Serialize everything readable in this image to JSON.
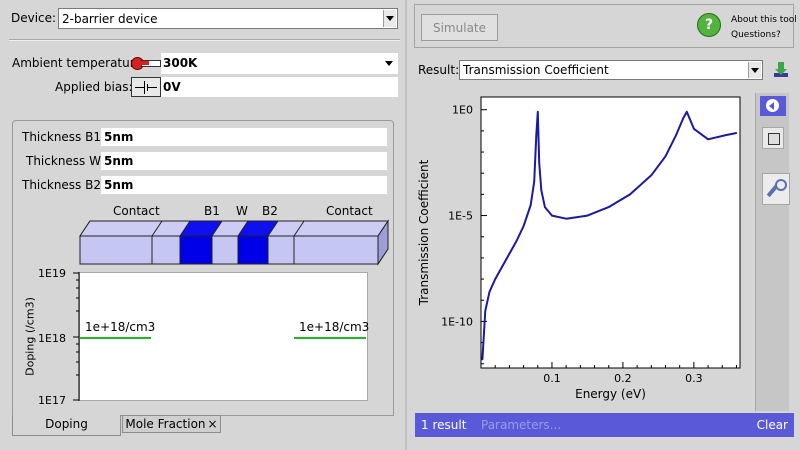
{
  "device": {
    "label": "Device:",
    "value": "2-barrier device"
  },
  "ambient": {
    "label": "Ambient temperature:",
    "value": "300K"
  },
  "bias": {
    "label": "Applied bias:",
    "value": "0V"
  },
  "thickness": [
    {
      "label": "Thickness B1:",
      "value": "5nm"
    },
    {
      "label": "Thickness W:",
      "value": "5nm"
    },
    {
      "label": "Thickness B2:",
      "value": "5nm"
    }
  ],
  "structure_labels": {
    "contact_left": "Contact",
    "b1": "B1",
    "w": "W",
    "b2": "B2",
    "contact_right": "Contact"
  },
  "doping_plot": {
    "ylabel": "Doping (/cm3)",
    "ticks": [
      "1E19",
      "1E18",
      "1E17"
    ],
    "left_label": "1e+18/cm3",
    "right_label": "1e+18/cm3",
    "line_color": "#22b822"
  },
  "tabs": [
    {
      "label": "Doping"
    },
    {
      "label": "Mole Fraction"
    }
  ],
  "tab_close": "×",
  "simulate": {
    "label": "Simulate"
  },
  "help": {
    "line1": "About this tool",
    "line2": "Questions?"
  },
  "result": {
    "label": "Result:",
    "value": "Transmission Coefficient"
  },
  "chart_data": {
    "type": "line",
    "xlabel": "Energy (eV)",
    "ylabel": "Transmission Coefficient",
    "x_ticks": [
      "0.1",
      "0.2",
      "0.3"
    ],
    "y_ticks": [
      "1E0",
      "1E-5",
      "1E-10"
    ],
    "xlim": [
      0,
      0.365
    ],
    "ylim_log10": [
      -12.2,
      0.6
    ],
    "log_y": true,
    "color": "#1a1aa6",
    "series": [
      {
        "x": [
          0.002,
          0.006,
          0.012,
          0.02,
          0.03,
          0.04,
          0.05,
          0.06,
          0.07,
          0.075,
          0.078,
          0.08,
          0.082,
          0.085,
          0.09,
          0.1,
          0.12,
          0.15,
          0.18,
          0.21,
          0.24,
          0.26,
          0.275,
          0.285,
          0.29,
          0.3,
          0.32,
          0.345,
          0.36
        ],
        "y": [
          -11.8,
          -9.5,
          -8.6,
          -8.0,
          -7.4,
          -6.8,
          -6.2,
          -5.5,
          -4.5,
          -3.4,
          -1.2,
          -0.1,
          -2.5,
          -3.8,
          -4.6,
          -5.0,
          -5.15,
          -5.0,
          -4.6,
          -4.0,
          -3.1,
          -2.2,
          -1.2,
          -0.4,
          -0.1,
          -0.9,
          -1.4,
          -1.2,
          -1.1
        ]
      }
    ]
  },
  "status": {
    "count": "1 result",
    "params": "Parameters...",
    "clear": "Clear"
  }
}
